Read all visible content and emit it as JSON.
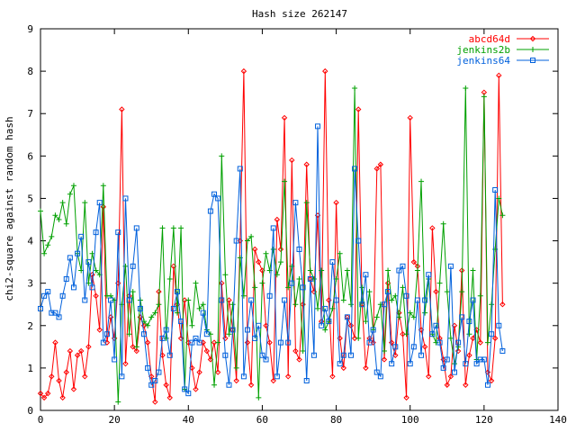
{
  "chart_data": {
    "type": "line",
    "title": "Hash size 262147",
    "xlabel": "",
    "ylabel": "chi2-square against random hash",
    "xlim": [
      0,
      140
    ],
    "ylim": [
      0,
      9
    ],
    "x_ticks": [
      0,
      20,
      40,
      60,
      80,
      100,
      120,
      140
    ],
    "y_ticks": [
      0,
      1,
      2,
      3,
      4,
      5,
      6,
      7,
      8,
      9
    ],
    "legend_position": "top-right",
    "grid": false,
    "series": [
      {
        "name": "abcd64d",
        "color": "#ff0000",
        "marker": "diamond",
        "x": [
          0,
          1,
          2,
          3,
          4,
          5,
          6,
          7,
          8,
          9,
          10,
          11,
          12,
          13,
          14,
          15,
          16,
          17,
          18,
          19,
          20,
          21,
          22,
          23,
          24,
          25,
          26,
          27,
          28,
          29,
          30,
          31,
          32,
          33,
          34,
          35,
          36,
          37,
          38,
          39,
          40,
          41,
          42,
          43,
          44,
          45,
          46,
          47,
          48,
          49,
          50,
          51,
          52,
          53,
          54,
          55,
          56,
          57,
          58,
          59,
          60,
          61,
          62,
          63,
          64,
          65,
          66,
          67,
          68,
          69,
          70,
          71,
          72,
          73,
          74,
          75,
          76,
          77,
          78,
          79,
          80,
          81,
          82,
          83,
          84,
          85,
          86,
          87,
          88,
          89,
          90,
          91,
          92,
          93,
          94,
          95,
          96,
          97,
          98,
          99,
          100,
          101,
          102,
          103,
          104,
          105,
          106,
          107,
          108,
          109,
          110,
          111,
          112,
          113,
          114,
          115,
          116,
          117,
          118,
          119,
          120,
          121,
          122,
          123,
          124,
          125
        ],
        "y": [
          0.4,
          0.3,
          0.4,
          0.8,
          1.6,
          0.7,
          0.3,
          0.9,
          1.4,
          0.5,
          1.3,
          1.4,
          0.8,
          1.5,
          3.2,
          2.7,
          1.9,
          4.8,
          1.6,
          2.2,
          1.7,
          3.0,
          7.1,
          1.1,
          2.7,
          1.5,
          1.4,
          2.2,
          2.0,
          1.6,
          0.8,
          0.2,
          2.8,
          1.3,
          0.6,
          0.3,
          3.4,
          2.5,
          1.7,
          2.6,
          1.6,
          1.0,
          0.5,
          0.9,
          1.6,
          1.4,
          1.2,
          1.6,
          0.9,
          3.0,
          1.7,
          2.6,
          1.9,
          0.7,
          4.0,
          8.0,
          1.6,
          0.6,
          3.8,
          3.5,
          3.3,
          2.0,
          1.6,
          0.7,
          4.5,
          3.8,
          6.9,
          0.8,
          5.9,
          1.4,
          1.2,
          2.5,
          5.8,
          3.1,
          2.8,
          4.6,
          2.1,
          8.0,
          2.6,
          0.8,
          4.9,
          1.7,
          1.0,
          2.2,
          2.0,
          1.7,
          7.1,
          2.5,
          1.0,
          1.7,
          1.6,
          5.7,
          5.8,
          1.2,
          3.0,
          1.6,
          1.3,
          2.3,
          1.8,
          0.3,
          6.9,
          3.5,
          3.4,
          1.9,
          1.5,
          0.8,
          4.3,
          2.8,
          1.7,
          1.2,
          0.6,
          0.8,
          2.0,
          1.4,
          3.3,
          0.6,
          1.3,
          1.7,
          1.9,
          1.6,
          7.5,
          0.9,
          0.7,
          1.7,
          7.9,
          2.5
        ]
      },
      {
        "name": "jenkins2b",
        "color": "#00a000",
        "marker": "plus",
        "x": [
          0,
          1,
          2,
          3,
          4,
          5,
          6,
          7,
          8,
          9,
          10,
          11,
          12,
          13,
          14,
          15,
          16,
          17,
          18,
          19,
          20,
          21,
          22,
          23,
          24,
          25,
          26,
          27,
          28,
          29,
          30,
          31,
          32,
          33,
          34,
          35,
          36,
          37,
          38,
          39,
          40,
          41,
          42,
          43,
          44,
          45,
          46,
          47,
          48,
          49,
          50,
          51,
          52,
          53,
          54,
          55,
          56,
          57,
          58,
          59,
          60,
          61,
          62,
          63,
          64,
          65,
          66,
          67,
          68,
          69,
          70,
          71,
          72,
          73,
          74,
          75,
          76,
          77,
          78,
          79,
          80,
          81,
          82,
          83,
          84,
          85,
          86,
          87,
          88,
          89,
          90,
          91,
          92,
          93,
          94,
          95,
          96,
          97,
          98,
          99,
          100,
          101,
          102,
          103,
          104,
          105,
          106,
          107,
          108,
          109,
          110,
          111,
          112,
          113,
          114,
          115,
          116,
          117,
          118,
          119,
          120,
          121,
          122,
          123,
          124,
          125
        ],
        "y": [
          4.7,
          3.7,
          3.9,
          4.1,
          4.6,
          4.5,
          4.9,
          4.4,
          5.1,
          5.3,
          3.7,
          3.3,
          4.9,
          3.0,
          3.7,
          3.3,
          3.2,
          5.3,
          2.7,
          2.7,
          2.6,
          0.2,
          2.5,
          3.4,
          1.8,
          2.8,
          1.5,
          2.6,
          2.1,
          2.0,
          2.2,
          2.3,
          2.5,
          4.3,
          1.7,
          3.1,
          4.3,
          2.3,
          4.3,
          0.5,
          2.6,
          2.0,
          3.0,
          2.4,
          2.5,
          1.9,
          1.8,
          0.6,
          1.6,
          6.0,
          3.2,
          1.8,
          2.5,
          1.0,
          3.6,
          2.7,
          4.0,
          4.1,
          2.9,
          0.3,
          3.0,
          3.7,
          3.3,
          3.8,
          3.2,
          3.5,
          5.4,
          2.9,
          3.4,
          2.5,
          3.1,
          1.4,
          4.9,
          3.3,
          3.1,
          2.4,
          3.3,
          1.9,
          2.1,
          2.4,
          3.1,
          3.7,
          2.6,
          3.3,
          2.5,
          7.6,
          1.7,
          2.9,
          2.1,
          2.8,
          1.9,
          2.2,
          2.5,
          1.4,
          3.3,
          2.6,
          2.7,
          2.2,
          2.9,
          1.8,
          2.3,
          2.2,
          3.3,
          5.4,
          2.3,
          3.1,
          1.8,
          1.6,
          3.0,
          4.4,
          2.8,
          1.7,
          1.1,
          1.5,
          2.8,
          7.6,
          1.8,
          3.3,
          1.2,
          2.7,
          7.4,
          1.6,
          2.5,
          3.8,
          5.0,
          4.6
        ]
      },
      {
        "name": "jenkins64",
        "color": "#0060dc",
        "marker": "square",
        "x": [
          0,
          1,
          2,
          3,
          4,
          5,
          6,
          7,
          8,
          9,
          10,
          11,
          12,
          13,
          14,
          15,
          16,
          17,
          18,
          19,
          20,
          21,
          22,
          23,
          24,
          25,
          26,
          27,
          28,
          29,
          30,
          31,
          32,
          33,
          34,
          35,
          36,
          37,
          38,
          39,
          40,
          41,
          42,
          43,
          44,
          45,
          46,
          47,
          48,
          49,
          50,
          51,
          52,
          53,
          54,
          55,
          56,
          57,
          58,
          59,
          60,
          61,
          62,
          63,
          64,
          65,
          66,
          67,
          68,
          69,
          70,
          71,
          72,
          73,
          74,
          75,
          76,
          77,
          78,
          79,
          80,
          81,
          82,
          83,
          84,
          85,
          86,
          87,
          88,
          89,
          90,
          91,
          92,
          93,
          94,
          95,
          96,
          97,
          98,
          99,
          100,
          101,
          102,
          103,
          104,
          105,
          106,
          107,
          108,
          109,
          110,
          111,
          112,
          113,
          114,
          115,
          116,
          117,
          118,
          119,
          120,
          121,
          122,
          123,
          124,
          125
        ],
        "y": [
          2.4,
          2.7,
          2.8,
          2.3,
          2.3,
          2.2,
          2.7,
          3.1,
          3.6,
          2.9,
          3.7,
          4.1,
          2.6,
          3.5,
          2.9,
          4.2,
          4.9,
          1.6,
          1.8,
          2.6,
          1.2,
          4.2,
          0.8,
          5.0,
          2.6,
          3.4,
          4.3,
          2.4,
          1.8,
          1.0,
          0.6,
          0.7,
          0.9,
          1.7,
          1.9,
          1.3,
          2.4,
          2.8,
          2.1,
          0.5,
          0.4,
          1.6,
          1.7,
          1.6,
          2.3,
          1.8,
          4.7,
          5.1,
          5.0,
          2.6,
          1.3,
          0.6,
          1.9,
          4.0,
          5.7,
          0.8,
          1.9,
          2.6,
          1.7,
          2.0,
          1.3,
          1.2,
          2.7,
          4.3,
          0.8,
          1.6,
          2.6,
          1.6,
          3.0,
          4.9,
          3.8,
          2.9,
          0.7,
          3.1,
          1.3,
          6.7,
          2.0,
          2.4,
          2.1,
          3.5,
          2.6,
          1.1,
          1.3,
          2.2,
          1.3,
          5.7,
          4.0,
          2.5,
          3.2,
          1.6,
          1.9,
          0.9,
          0.8,
          2.5,
          2.8,
          1.1,
          1.5,
          3.3,
          3.4,
          2.7,
          1.1,
          1.5,
          2.6,
          1.3,
          2.6,
          3.2,
          1.8,
          2.0,
          1.6,
          1.0,
          1.2,
          3.4,
          0.9,
          1.6,
          2.2,
          1.1,
          2.1,
          2.6,
          1.1,
          1.2,
          1.2,
          0.6,
          1.8,
          5.2,
          2.0,
          1.4
        ]
      }
    ]
  }
}
